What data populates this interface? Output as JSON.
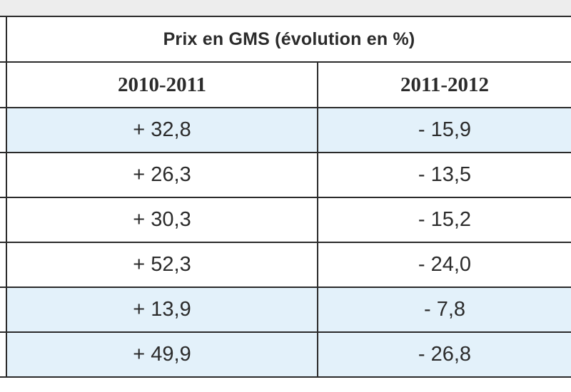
{
  "table": {
    "caption": "Prix en GMS (évolution en %)",
    "columns": [
      "2010-2011",
      "2011-2012"
    ],
    "rows": [
      {
        "c1": "+ 32,8",
        "c2": "- 15,9",
        "shaded": true
      },
      {
        "c1": "+ 26,3",
        "c2": "- 13,5",
        "shaded": false
      },
      {
        "c1": "+ 30,3",
        "c2": "- 15,2",
        "shaded": false
      },
      {
        "c1": "+ 52,3",
        "c2": "- 24,0",
        "shaded": false
      },
      {
        "c1": "+ 13,9",
        "c2": "- 7,8",
        "shaded": true
      },
      {
        "c1": "+ 49,9",
        "c2": "- 26,8",
        "shaded": true
      }
    ]
  },
  "colors": {
    "shaded_row": "#e3f1fa",
    "border": "#2a2a2a"
  }
}
